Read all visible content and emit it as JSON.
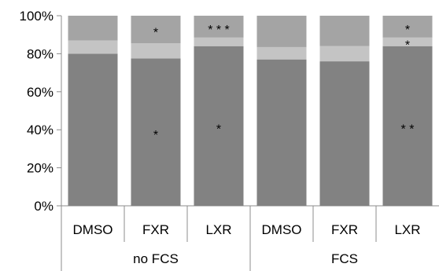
{
  "chart_data": {
    "type": "bar",
    "stacked": true,
    "groups": [
      "no FCS",
      "FCS"
    ],
    "categories": [
      "DMSO",
      "FXR",
      "LXR",
      "DMSO",
      "FXR",
      "LXR"
    ],
    "category_group": [
      0,
      0,
      0,
      1,
      1,
      1
    ],
    "series": [
      {
        "color": "#828282",
        "values": [
          80,
          77.5,
          84,
          77,
          76,
          84
        ]
      },
      {
        "color": "#c4c4c4",
        "values": [
          7,
          8,
          4.5,
          6.5,
          8,
          4.5
        ]
      },
      {
        "color": "#a4a4a4",
        "values": [
          13,
          14.5,
          11.5,
          16.5,
          16,
          11.5
        ]
      }
    ],
    "annotations": [
      {
        "category_index": 1,
        "series_index": 0,
        "text": "*"
      },
      {
        "category_index": 2,
        "series_index": 0,
        "text": "*"
      },
      {
        "category_index": 5,
        "series_index": 0,
        "text": "* *"
      },
      {
        "category_index": 1,
        "series_index": 2,
        "text": "*"
      },
      {
        "category_index": 2,
        "series_index": 2,
        "text": "* * *"
      },
      {
        "category_index": 5,
        "series_index": 1,
        "text": "*"
      },
      {
        "category_index": 5,
        "series_index": 2,
        "text": "*"
      }
    ],
    "y_ticks": [
      "0%",
      "20%",
      "40%",
      "60%",
      "80%",
      "100%"
    ],
    "ylim": [
      0,
      100
    ],
    "ylabel": "",
    "xlabel": "",
    "title": "",
    "grid": false,
    "legend": "none"
  }
}
